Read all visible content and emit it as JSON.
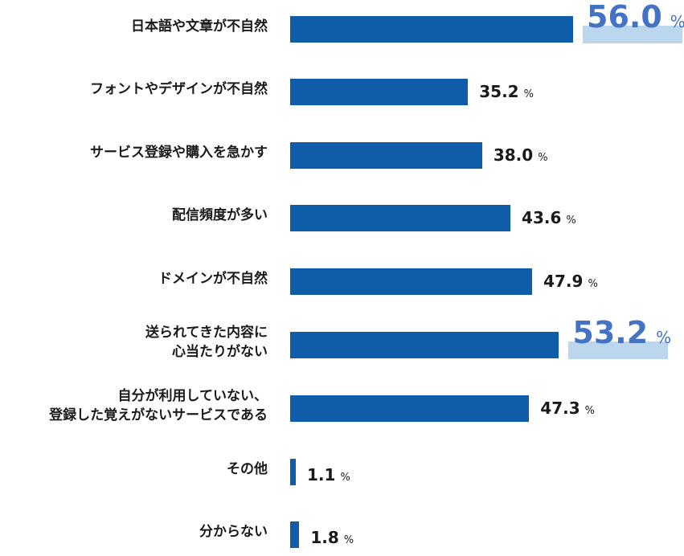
{
  "chart_data": {
    "type": "bar",
    "orientation": "horizontal",
    "unit": "%",
    "categories": [
      "日本語や文章が不自然",
      "フォントやデザインが不自然",
      "サービス登録や購入を急かす",
      "配信頻度が多い",
      "ドメインが不自然",
      "送られてきた内容に\n心当たりがない",
      "自分が利用していない、\n登録した覚えがないサービスである",
      "その他",
      "分からない"
    ],
    "values": [
      56.0,
      35.2,
      38.0,
      43.6,
      47.9,
      53.2,
      47.3,
      1.1,
      1.8
    ],
    "highlighted": [
      0,
      5
    ],
    "bar_color": "#0f5ca8",
    "highlight_color": "#4472c4",
    "highlight_bg": "#bcd6ee"
  }
}
